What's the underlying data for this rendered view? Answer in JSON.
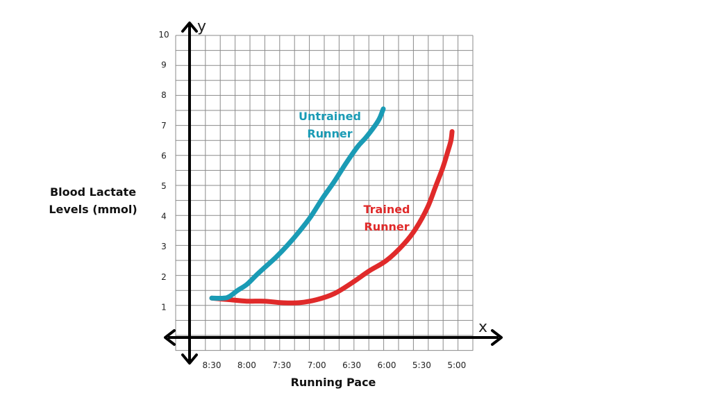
{
  "chart_data": {
    "type": "line",
    "title": "",
    "xlabel": "Running Pace",
    "ylabel_lines": [
      "Blood Lactate",
      "Levels (mmol)"
    ],
    "x_axis_letter": "x",
    "y_axis_letter": "y",
    "x_tick_labels": [
      "8:30",
      "8:00",
      "7:30",
      "7:00",
      "6:30",
      "6:00",
      "5:30",
      "5:00"
    ],
    "y_tick_labels": [
      "1",
      "2",
      "3",
      "4",
      "5",
      "6",
      "7",
      "8",
      "9",
      "10"
    ],
    "ylim": [
      0,
      10
    ],
    "x_unit_note": "pace in min per unit distance; axis runs from slower (8:30) to faster (5:00)",
    "grid": true,
    "series": [
      {
        "name_lines": [
          "Untrained",
          "Runner"
        ],
        "color": "#1a9bb5",
        "x": [
          "8:30",
          "8:20",
          "8:15",
          "8:08",
          "8:00",
          "7:52",
          "7:45",
          "7:35",
          "7:25",
          "7:15",
          "7:05",
          "6:55",
          "6:45",
          "6:35",
          "6:25",
          "6:18",
          "6:10",
          "6:06",
          "6:03"
        ],
        "y": [
          1.3,
          1.3,
          1.35,
          1.55,
          1.75,
          2.05,
          2.3,
          2.65,
          3.05,
          3.5,
          4.0,
          4.6,
          5.15,
          5.75,
          6.3,
          6.6,
          7.0,
          7.25,
          7.55
        ]
      },
      {
        "name_lines": [
          "Trained",
          "Runner"
        ],
        "color": "#e02a2a",
        "x": [
          "8:30",
          "8:15",
          "8:00",
          "7:45",
          "7:30",
          "7:15",
          "7:00",
          "6:45",
          "6:30",
          "6:15",
          "6:00",
          "5:45",
          "5:35",
          "5:25",
          "5:18",
          "5:12",
          "5:08",
          "5:05",
          "5:04"
        ],
        "y": [
          1.3,
          1.25,
          1.2,
          1.2,
          1.15,
          1.15,
          1.25,
          1.45,
          1.8,
          2.2,
          2.55,
          3.1,
          3.6,
          4.3,
          5.0,
          5.6,
          6.1,
          6.5,
          6.8
        ]
      }
    ]
  }
}
